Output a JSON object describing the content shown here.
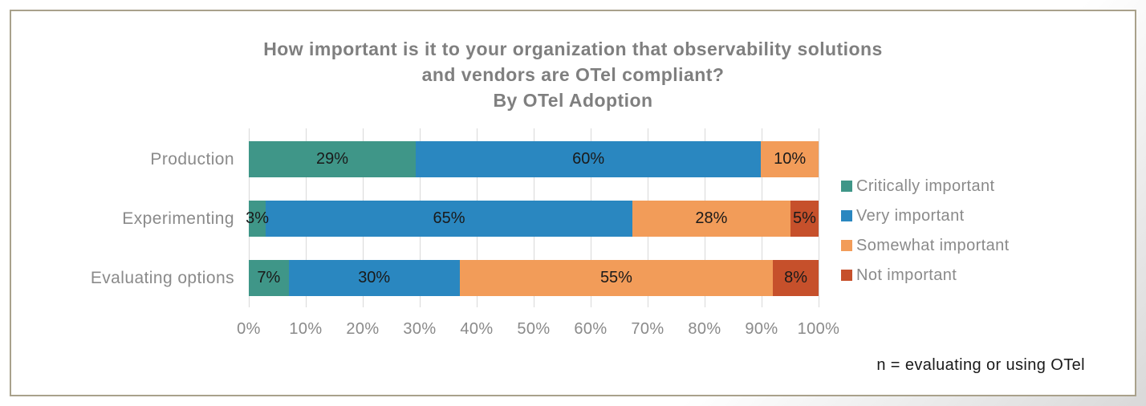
{
  "frame": {
    "border_color": "#A9A18B",
    "card_background": "#FFFFFF",
    "gridline_color": "#D9D9D9",
    "text_gray": "#8A8A8A",
    "title_gray": "#7F7F7F",
    "label_black": "#1A1A1A"
  },
  "title": {
    "lines": [
      "How important is it to your organization that observability solutions",
      "and vendors are OTel compliant?",
      "By OTel Adoption"
    ]
  },
  "note": "n = evaluating or using OTel",
  "chart_data": {
    "type": "bar",
    "orientation": "horizontal",
    "stacked": true,
    "title": "How important is it to your organization that observability solutions and vendors are OTel compliant? By OTel Adoption",
    "categories": [
      "Production",
      "Experimenting",
      "Evaluating options"
    ],
    "series": [
      {
        "name": "Critically important",
        "color": "#3F9688",
        "values": [
          29,
          3,
          7
        ]
      },
      {
        "name": "Very important",
        "color": "#2A87C0",
        "values": [
          60,
          65,
          30
        ]
      },
      {
        "name": "Somewhat important",
        "color": "#F29C59",
        "values": [
          10,
          28,
          55
        ]
      },
      {
        "name": "Not important",
        "color": "#C6502B",
        "values": [
          0,
          5,
          8
        ]
      }
    ],
    "value_suffix": "%",
    "x_ticks": [
      "0%",
      "10%",
      "20%",
      "30%",
      "40%",
      "50%",
      "60%",
      "70%",
      "80%",
      "90%",
      "100%"
    ],
    "xlim": [
      0,
      100
    ],
    "grid": true,
    "legend_position": "right",
    "annotation": "n = evaluating or using OTel"
  }
}
